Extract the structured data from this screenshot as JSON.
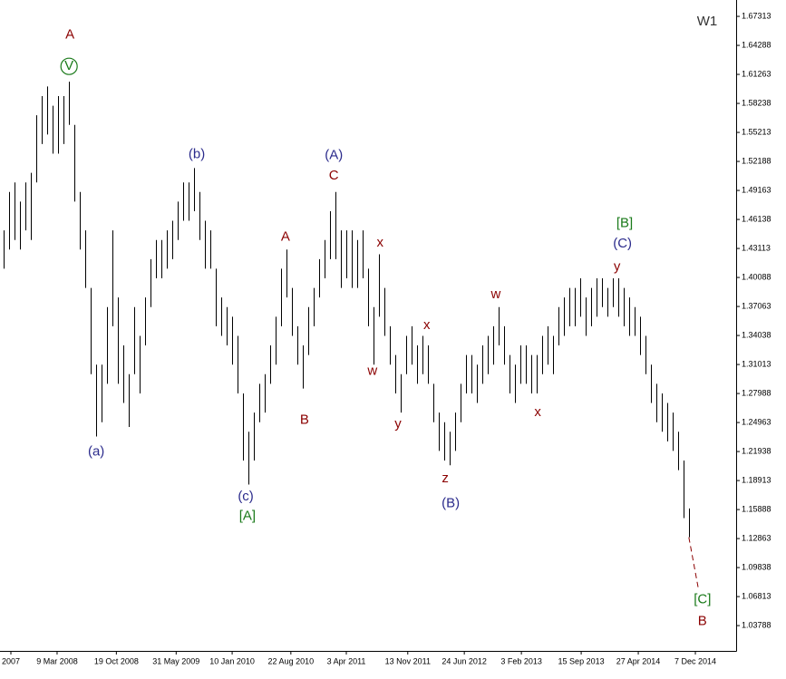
{
  "chart_data": {
    "type": "ohlc",
    "timeframe": "W1",
    "color": "#000000",
    "background": "#ffffff",
    "x": [
      0,
      1,
      2,
      3,
      4,
      5,
      6,
      7,
      8,
      9,
      10,
      11,
      12,
      13,
      14,
      15,
      16,
      17,
      18,
      19,
      20,
      21,
      22,
      23,
      24,
      25,
      26,
      27,
      28,
      29,
      30,
      31,
      32,
      33,
      34,
      35,
      36,
      37,
      38,
      39,
      40,
      41,
      42,
      43,
      44,
      45,
      46,
      47,
      48,
      49,
      50,
      51,
      52,
      53,
      54,
      55,
      56,
      57,
      58,
      59,
      60,
      61,
      62,
      63,
      64,
      65,
      66,
      67,
      68,
      69,
      70,
      71,
      72,
      73,
      74,
      75,
      76,
      77,
      78,
      79,
      80,
      81,
      82,
      83,
      84,
      85,
      86,
      87,
      88,
      89,
      90,
      91,
      92,
      93,
      94,
      95,
      96,
      97,
      98,
      99,
      100,
      101,
      102,
      103,
      104,
      105,
      106,
      107,
      108,
      109,
      110,
      111,
      112,
      113,
      114,
      115,
      116,
      117,
      118,
      119,
      120,
      121,
      122,
      123,
      124,
      125,
      126
    ],
    "high": [
      1.45,
      1.49,
      1.5,
      1.48,
      1.5,
      1.51,
      1.57,
      1.59,
      1.6,
      1.58,
      1.59,
      1.59,
      1.605,
      1.56,
      1.49,
      1.45,
      1.39,
      1.31,
      1.31,
      1.37,
      1.45,
      1.38,
      1.33,
      1.3,
      1.37,
      1.34,
      1.38,
      1.42,
      1.44,
      1.44,
      1.45,
      1.46,
      1.48,
      1.5,
      1.5,
      1.515,
      1.49,
      1.46,
      1.45,
      1.41,
      1.38,
      1.37,
      1.36,
      1.34,
      1.28,
      1.24,
      1.26,
      1.29,
      1.3,
      1.33,
      1.36,
      1.41,
      1.43,
      1.39,
      1.35,
      1.33,
      1.37,
      1.39,
      1.42,
      1.44,
      1.47,
      1.49,
      1.45,
      1.45,
      1.45,
      1.44,
      1.45,
      1.41,
      1.37,
      1.425,
      1.39,
      1.35,
      1.32,
      1.3,
      1.34,
      1.35,
      1.33,
      1.34,
      1.33,
      1.29,
      1.26,
      1.25,
      1.24,
      1.26,
      1.29,
      1.32,
      1.32,
      1.31,
      1.33,
      1.34,
      1.35,
      1.37,
      1.35,
      1.32,
      1.31,
      1.33,
      1.33,
      1.32,
      1.32,
      1.34,
      1.35,
      1.34,
      1.37,
      1.38,
      1.39,
      1.39,
      1.4,
      1.38,
      1.39,
      1.4,
      1.4,
      1.39,
      1.4,
      1.4,
      1.39,
      1.38,
      1.37,
      1.36,
      1.34,
      1.31,
      1.29,
      1.28,
      1.27,
      1.26,
      1.24,
      1.21,
      1.16
    ],
    "low": [
      1.41,
      1.43,
      1.44,
      1.43,
      1.45,
      1.44,
      1.5,
      1.54,
      1.55,
      1.53,
      1.53,
      1.54,
      1.56,
      1.48,
      1.43,
      1.39,
      1.3,
      1.235,
      1.25,
      1.29,
      1.35,
      1.29,
      1.27,
      1.245,
      1.3,
      1.28,
      1.33,
      1.37,
      1.4,
      1.4,
      1.41,
      1.42,
      1.44,
      1.46,
      1.46,
      1.47,
      1.44,
      1.41,
      1.41,
      1.35,
      1.34,
      1.33,
      1.31,
      1.28,
      1.21,
      1.185,
      1.21,
      1.25,
      1.26,
      1.29,
      1.31,
      1.35,
      1.38,
      1.34,
      1.31,
      1.285,
      1.32,
      1.35,
      1.38,
      1.4,
      1.42,
      1.42,
      1.39,
      1.4,
      1.39,
      1.39,
      1.4,
      1.35,
      1.31,
      1.36,
      1.34,
      1.31,
      1.28,
      1.26,
      1.3,
      1.31,
      1.29,
      1.3,
      1.29,
      1.25,
      1.22,
      1.21,
      1.205,
      1.22,
      1.25,
      1.28,
      1.28,
      1.27,
      1.29,
      1.3,
      1.31,
      1.33,
      1.31,
      1.28,
      1.27,
      1.29,
      1.29,
      1.28,
      1.28,
      1.3,
      1.31,
      1.3,
      1.33,
      1.34,
      1.35,
      1.35,
      1.36,
      1.34,
      1.35,
      1.36,
      1.37,
      1.36,
      1.37,
      1.36,
      1.35,
      1.34,
      1.34,
      1.32,
      1.3,
      1.27,
      1.25,
      1.24,
      1.23,
      1.22,
      1.2,
      1.15,
      1.13
    ],
    "projection": {
      "x": [
        126,
        127.7
      ],
      "values": [
        1.13,
        1.078
      ],
      "color": "#8b0000",
      "dashed": true
    },
    "xlim": [
      -0.7,
      134.7
    ],
    "ylim": [
      1.0115,
      1.6902
    ],
    "xticks": [
      {
        "value": 1.3,
        "label": "2007"
      },
      {
        "value": 9.8,
        "label": "9 Mar 2008"
      },
      {
        "value": 20.7,
        "label": "19 Oct 2008"
      },
      {
        "value": 31.7,
        "label": "31 May 2009"
      },
      {
        "value": 42,
        "label": "10 Jan 2010"
      },
      {
        "value": 52.8,
        "label": "22 Aug 2010"
      },
      {
        "value": 63,
        "label": "3 Apr 2011"
      },
      {
        "value": 74.3,
        "label": "13 Nov 2011"
      },
      {
        "value": 84.7,
        "label": "24 Jun 2012"
      },
      {
        "value": 95.2,
        "label": "3 Feb 2013"
      },
      {
        "value": 106.2,
        "label": "15 Sep 2013"
      },
      {
        "value": 116.7,
        "label": "27 Apr 2014"
      },
      {
        "value": 127.2,
        "label": "7 Dec 2014"
      }
    ],
    "yticks": [
      1.67313,
      1.64288,
      1.61263,
      1.58238,
      1.55213,
      1.52188,
      1.49163,
      1.46138,
      1.43113,
      1.40088,
      1.37063,
      1.34038,
      1.31013,
      1.27988,
      1.24963,
      1.21938,
      1.18913,
      1.15888,
      1.12863,
      1.09838,
      1.06813,
      1.03788
    ],
    "annotations": [
      {
        "text": "A",
        "x": 12.17,
        "y": 1.654,
        "color": "#8b0000"
      },
      {
        "text": "V",
        "x": 12.0,
        "y": 1.621,
        "color": "#1a7a1a",
        "shape": "circle"
      },
      {
        "text": "(a)",
        "x": 17.0,
        "y": 1.219,
        "color": "#2b2b8c"
      },
      {
        "text": "(b)",
        "x": 35.5,
        "y": 1.529,
        "color": "#2b2b8c"
      },
      {
        "text": "(c)",
        "x": 44.5,
        "y": 1.172,
        "color": "#2b2b8c"
      },
      {
        "text": "[A]",
        "x": 44.8,
        "y": 1.152,
        "color": "#1a7a1a"
      },
      {
        "text": "A",
        "x": 51.8,
        "y": 1.443,
        "color": "#8b0000"
      },
      {
        "text": "B",
        "x": 55.3,
        "y": 1.252,
        "color": "#8b0000"
      },
      {
        "text": "(A)",
        "x": 60.7,
        "y": 1.528,
        "color": "#2b2b8c"
      },
      {
        "text": "C",
        "x": 60.7,
        "y": 1.507,
        "color": "#8b0000"
      },
      {
        "text": "x",
        "x": 69.2,
        "y": 1.437,
        "color": "#8b0000"
      },
      {
        "text": "w",
        "x": 67.8,
        "y": 1.303,
        "color": "#8b0000"
      },
      {
        "text": "y",
        "x": 72.5,
        "y": 1.248,
        "color": "#8b0000"
      },
      {
        "text": "x",
        "x": 77.8,
        "y": 1.351,
        "color": "#8b0000"
      },
      {
        "text": "z",
        "x": 81.2,
        "y": 1.191,
        "color": "#8b0000"
      },
      {
        "text": "(B)",
        "x": 82.2,
        "y": 1.165,
        "color": "#2b2b8c"
      },
      {
        "text": "w",
        "x": 90.5,
        "y": 1.383,
        "color": "#8b0000"
      },
      {
        "text": "x",
        "x": 98.2,
        "y": 1.26,
        "color": "#8b0000"
      },
      {
        "text": "[B]",
        "x": 114.2,
        "y": 1.457,
        "color": "#1a7a1a"
      },
      {
        "text": "(C)",
        "x": 113.8,
        "y": 1.436,
        "color": "#2b2b8c"
      },
      {
        "text": "y",
        "x": 112.8,
        "y": 1.412,
        "color": "#8b0000"
      },
      {
        "text": "[C]",
        "x": 128.5,
        "y": 1.065,
        "color": "#1a7a1a"
      },
      {
        "text": "B",
        "x": 128.5,
        "y": 1.042,
        "color": "#8b0000"
      }
    ]
  }
}
